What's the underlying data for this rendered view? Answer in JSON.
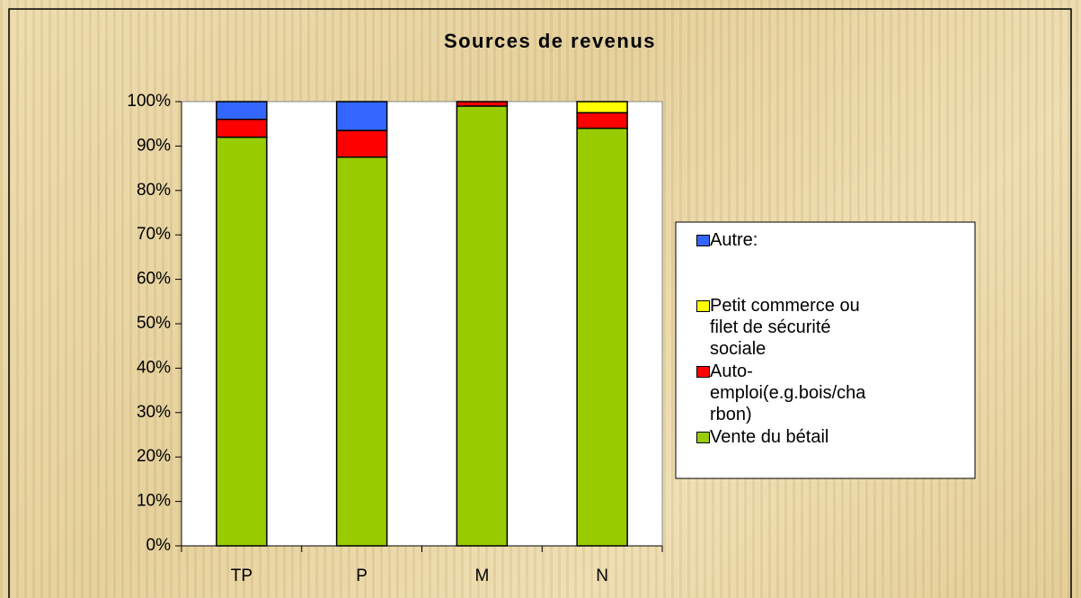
{
  "chart_data": {
    "type": "stacked_bar",
    "title": "Sources de revenus",
    "categories": [
      "TP",
      "P",
      "M",
      "N"
    ],
    "series": [
      {
        "name": "Vente du bétail",
        "color": "#99cc00",
        "values": [
          92,
          87.5,
          99,
          94
        ]
      },
      {
        "name": "Auto-emploi(e.g.bois/charbon)",
        "color": "#ff0000",
        "values": [
          4,
          6,
          1,
          3.5
        ]
      },
      {
        "name": "Petit commerce ou filet de sécurité sociale",
        "color": "#ffff00",
        "values": [
          0,
          0,
          0,
          2.5
        ]
      },
      {
        "name": "Autre:",
        "color": "#3366ff",
        "values": [
          4,
          6.5,
          0,
          0
        ]
      }
    ],
    "ylim": [
      0,
      100
    ],
    "yticks": [
      {
        "value": 0,
        "label": "0%"
      },
      {
        "value": 10,
        "label": "10%"
      },
      {
        "value": 20,
        "label": "20%"
      },
      {
        "value": 30,
        "label": "30%"
      },
      {
        "value": 40,
        "label": "40%"
      },
      {
        "value": 50,
        "label": "50%"
      },
      {
        "value": 60,
        "label": "60%"
      },
      {
        "value": 70,
        "label": "70%"
      },
      {
        "value": 80,
        "label": "80%"
      },
      {
        "value": 90,
        "label": "90%"
      },
      {
        "value": 100,
        "label": "100%"
      }
    ],
    "legend": "right"
  }
}
